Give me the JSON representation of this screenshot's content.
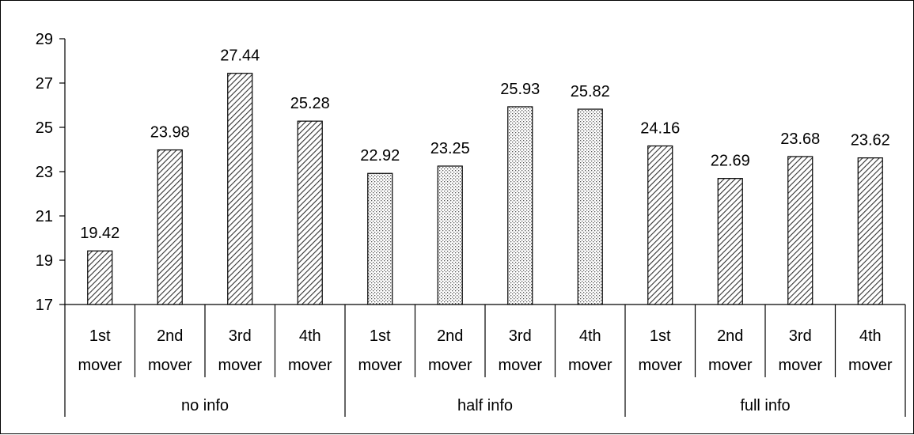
{
  "chart_data": {
    "type": "bar",
    "yaxis": {
      "ylim": [
        17,
        29
      ],
      "ticks": [
        17,
        19,
        21,
        23,
        25,
        27,
        29
      ]
    },
    "grid": false,
    "legend": "none",
    "groups": [
      {
        "name": "no info",
        "pattern": "diagonal-hatch",
        "bars": [
          {
            "label": [
              "1st",
              "mover"
            ],
            "value": 19.42,
            "value_label": "19.42"
          },
          {
            "label": [
              "2nd",
              "mover"
            ],
            "value": 23.98,
            "value_label": "23.98"
          },
          {
            "label": [
              "3rd",
              "mover"
            ],
            "value": 27.44,
            "value_label": "27.44"
          },
          {
            "label": [
              "4th",
              "mover"
            ],
            "value": 25.28,
            "value_label": "25.28"
          }
        ]
      },
      {
        "name": "half info",
        "pattern": "dots",
        "bars": [
          {
            "label": [
              "1st",
              "mover"
            ],
            "value": 22.92,
            "value_label": "22.92"
          },
          {
            "label": [
              "2nd",
              "mover"
            ],
            "value": 23.25,
            "value_label": "23.25"
          },
          {
            "label": [
              "3rd",
              "mover"
            ],
            "value": 25.93,
            "value_label": "25.93"
          },
          {
            "label": [
              "4th",
              "mover"
            ],
            "value": 25.82,
            "value_label": "25.82"
          }
        ]
      },
      {
        "name": "full info",
        "pattern": "diagonal-hatch",
        "bars": [
          {
            "label": [
              "1st",
              "mover"
            ],
            "value": 24.16,
            "value_label": "24.16"
          },
          {
            "label": [
              "2nd",
              "mover"
            ],
            "value": 22.69,
            "value_label": "22.69"
          },
          {
            "label": [
              "3rd",
              "mover"
            ],
            "value": 23.68,
            "value_label": "23.68"
          },
          {
            "label": [
              "4th",
              "mover"
            ],
            "value": 23.62,
            "value_label": "23.62"
          }
        ]
      }
    ]
  }
}
